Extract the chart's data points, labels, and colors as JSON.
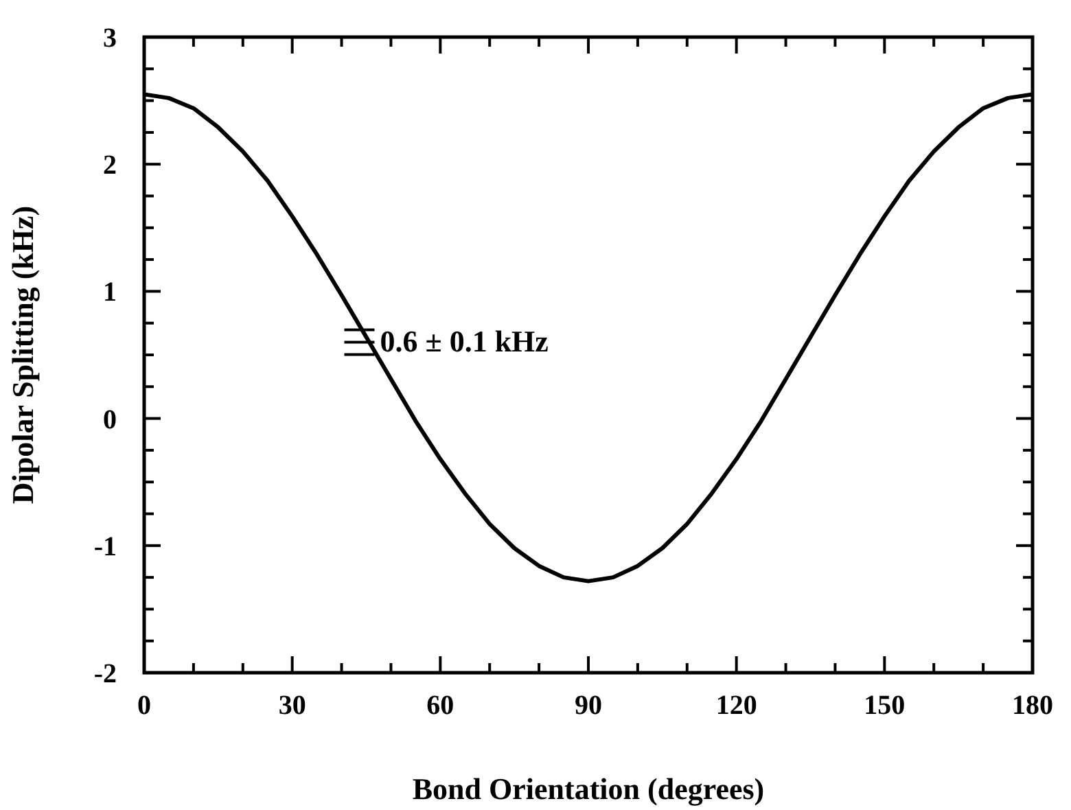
{
  "chart_data": {
    "type": "line",
    "xlabel": "Bond Orientation (degrees)",
    "ylabel": "Dipolar Splitting (kHz)",
    "x": [
      0,
      5,
      10,
      15,
      20,
      25,
      30,
      35,
      40,
      45,
      50,
      55,
      60,
      65,
      70,
      75,
      80,
      85,
      90,
      95,
      100,
      105,
      110,
      115,
      120,
      125,
      130,
      135,
      140,
      145,
      150,
      155,
      160,
      165,
      170,
      175,
      180
    ],
    "series": [
      {
        "color": "#000000",
        "values": [
          2.55,
          2.52,
          2.44,
          2.29,
          2.1,
          1.87,
          1.59,
          1.29,
          0.97,
          0.64,
          0.31,
          -0.02,
          -0.32,
          -0.59,
          -0.83,
          -1.02,
          -1.16,
          -1.25,
          -1.28,
          -1.25,
          -1.16,
          -1.02,
          -0.83,
          -0.59,
          -0.32,
          -0.02,
          0.31,
          0.64,
          0.97,
          1.29,
          1.59,
          1.87,
          2.1,
          2.29,
          2.44,
          2.52,
          2.55
        ]
      }
    ],
    "xlim": [
      0,
      180
    ],
    "ylim": [
      -2,
      3
    ],
    "xticks": [
      0,
      {
        "value": 10,
        "label": null
      },
      {
        "value": 20,
        "label": null
      },
      30,
      {
        "value": 40,
        "label": null
      },
      {
        "value": 50,
        "label": null
      },
      60,
      {
        "value": 70,
        "label": null
      },
      {
        "value": 80,
        "label": null
      },
      90,
      {
        "value": 100,
        "label": null
      },
      {
        "value": 110,
        "label": null
      },
      120,
      {
        "value": 130,
        "label": null
      },
      {
        "value": 140,
        "label": null
      },
      150,
      {
        "value": 160,
        "label": null
      },
      {
        "value": 170,
        "label": null
      },
      180
    ],
    "yticks": [
      -2,
      {
        "value": -1.75,
        "label": null
      },
      {
        "value": -1.5,
        "label": null
      },
      {
        "value": -1.25,
        "label": null
      },
      -1,
      {
        "value": -0.75,
        "label": null
      },
      {
        "value": -0.5,
        "label": null
      },
      {
        "value": -0.25,
        "label": null
      },
      0,
      {
        "value": 0.25,
        "label": null
      },
      {
        "value": 0.5,
        "label": null
      },
      {
        "value": 0.75,
        "label": null
      },
      1,
      {
        "value": 1.25,
        "label": null
      },
      {
        "value": 1.5,
        "label": null
      },
      {
        "value": 1.75,
        "label": null
      },
      2,
      {
        "value": 2.25,
        "label": null
      },
      {
        "value": 2.5,
        "label": null
      },
      {
        "value": 2.75,
        "label": null
      },
      3
    ],
    "annotations": [
      {
        "text": "0.6 ± 0.1 kHz",
        "x": 45,
        "y": 0.6
      }
    ],
    "marker": "none",
    "line_style": "solid"
  }
}
